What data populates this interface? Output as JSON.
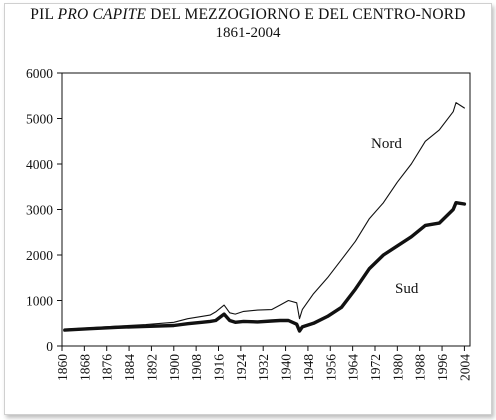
{
  "chart_data": {
    "type": "line",
    "title_prefix": "PIL",
    "title_italic": "PRO CAPITE",
    "title_suffix": "DEL MEZZOGIORNO E DEL CENTRO-NORD",
    "subtitle": "1861-2004",
    "xlabel": "",
    "ylabel": "",
    "xlim": [
      1860,
      2006
    ],
    "ylim": [
      0,
      6000
    ],
    "x_ticks": [
      1860,
      1868,
      1876,
      1884,
      1892,
      1900,
      1908,
      1916,
      1924,
      1932,
      1940,
      1948,
      1956,
      1964,
      1972,
      1980,
      1988,
      1996,
      2004
    ],
    "y_ticks": [
      0,
      1000,
      2000,
      3000,
      4000,
      5000,
      6000
    ],
    "grid": false,
    "series": [
      {
        "name": "Nord",
        "color": "#111111",
        "x": [
          1861,
          1870,
          1880,
          1890,
          1900,
          1905,
          1910,
          1913,
          1915,
          1918,
          1920,
          1922,
          1925,
          1930,
          1935,
          1938,
          1941,
          1944,
          1945,
          1946,
          1950,
          1955,
          1960,
          1965,
          1970,
          1975,
          1980,
          1985,
          1990,
          1995,
          2000,
          2001,
          2004
        ],
        "values": [
          370,
          400,
          440,
          470,
          520,
          600,
          650,
          680,
          750,
          900,
          730,
          700,
          760,
          790,
          800,
          900,
          1000,
          950,
          600,
          800,
          1150,
          1500,
          1900,
          2300,
          2800,
          3150,
          3600,
          4000,
          4500,
          4750,
          5150,
          5350,
          5230
        ]
      },
      {
        "name": "Sud",
        "color": "#111111",
        "x": [
          1861,
          1870,
          1880,
          1890,
          1900,
          1905,
          1910,
          1913,
          1915,
          1918,
          1920,
          1922,
          1925,
          1930,
          1935,
          1938,
          1941,
          1944,
          1945,
          1946,
          1950,
          1955,
          1960,
          1965,
          1970,
          1975,
          1980,
          1985,
          1990,
          1995,
          2000,
          2001,
          2004
        ],
        "values": [
          350,
          380,
          410,
          430,
          450,
          490,
          520,
          540,
          560,
          700,
          560,
          520,
          540,
          530,
          550,
          560,
          560,
          480,
          330,
          420,
          500,
          650,
          850,
          1250,
          1700,
          2000,
          2200,
          2400,
          2650,
          2700,
          3000,
          3150,
          3120
        ]
      }
    ]
  }
}
